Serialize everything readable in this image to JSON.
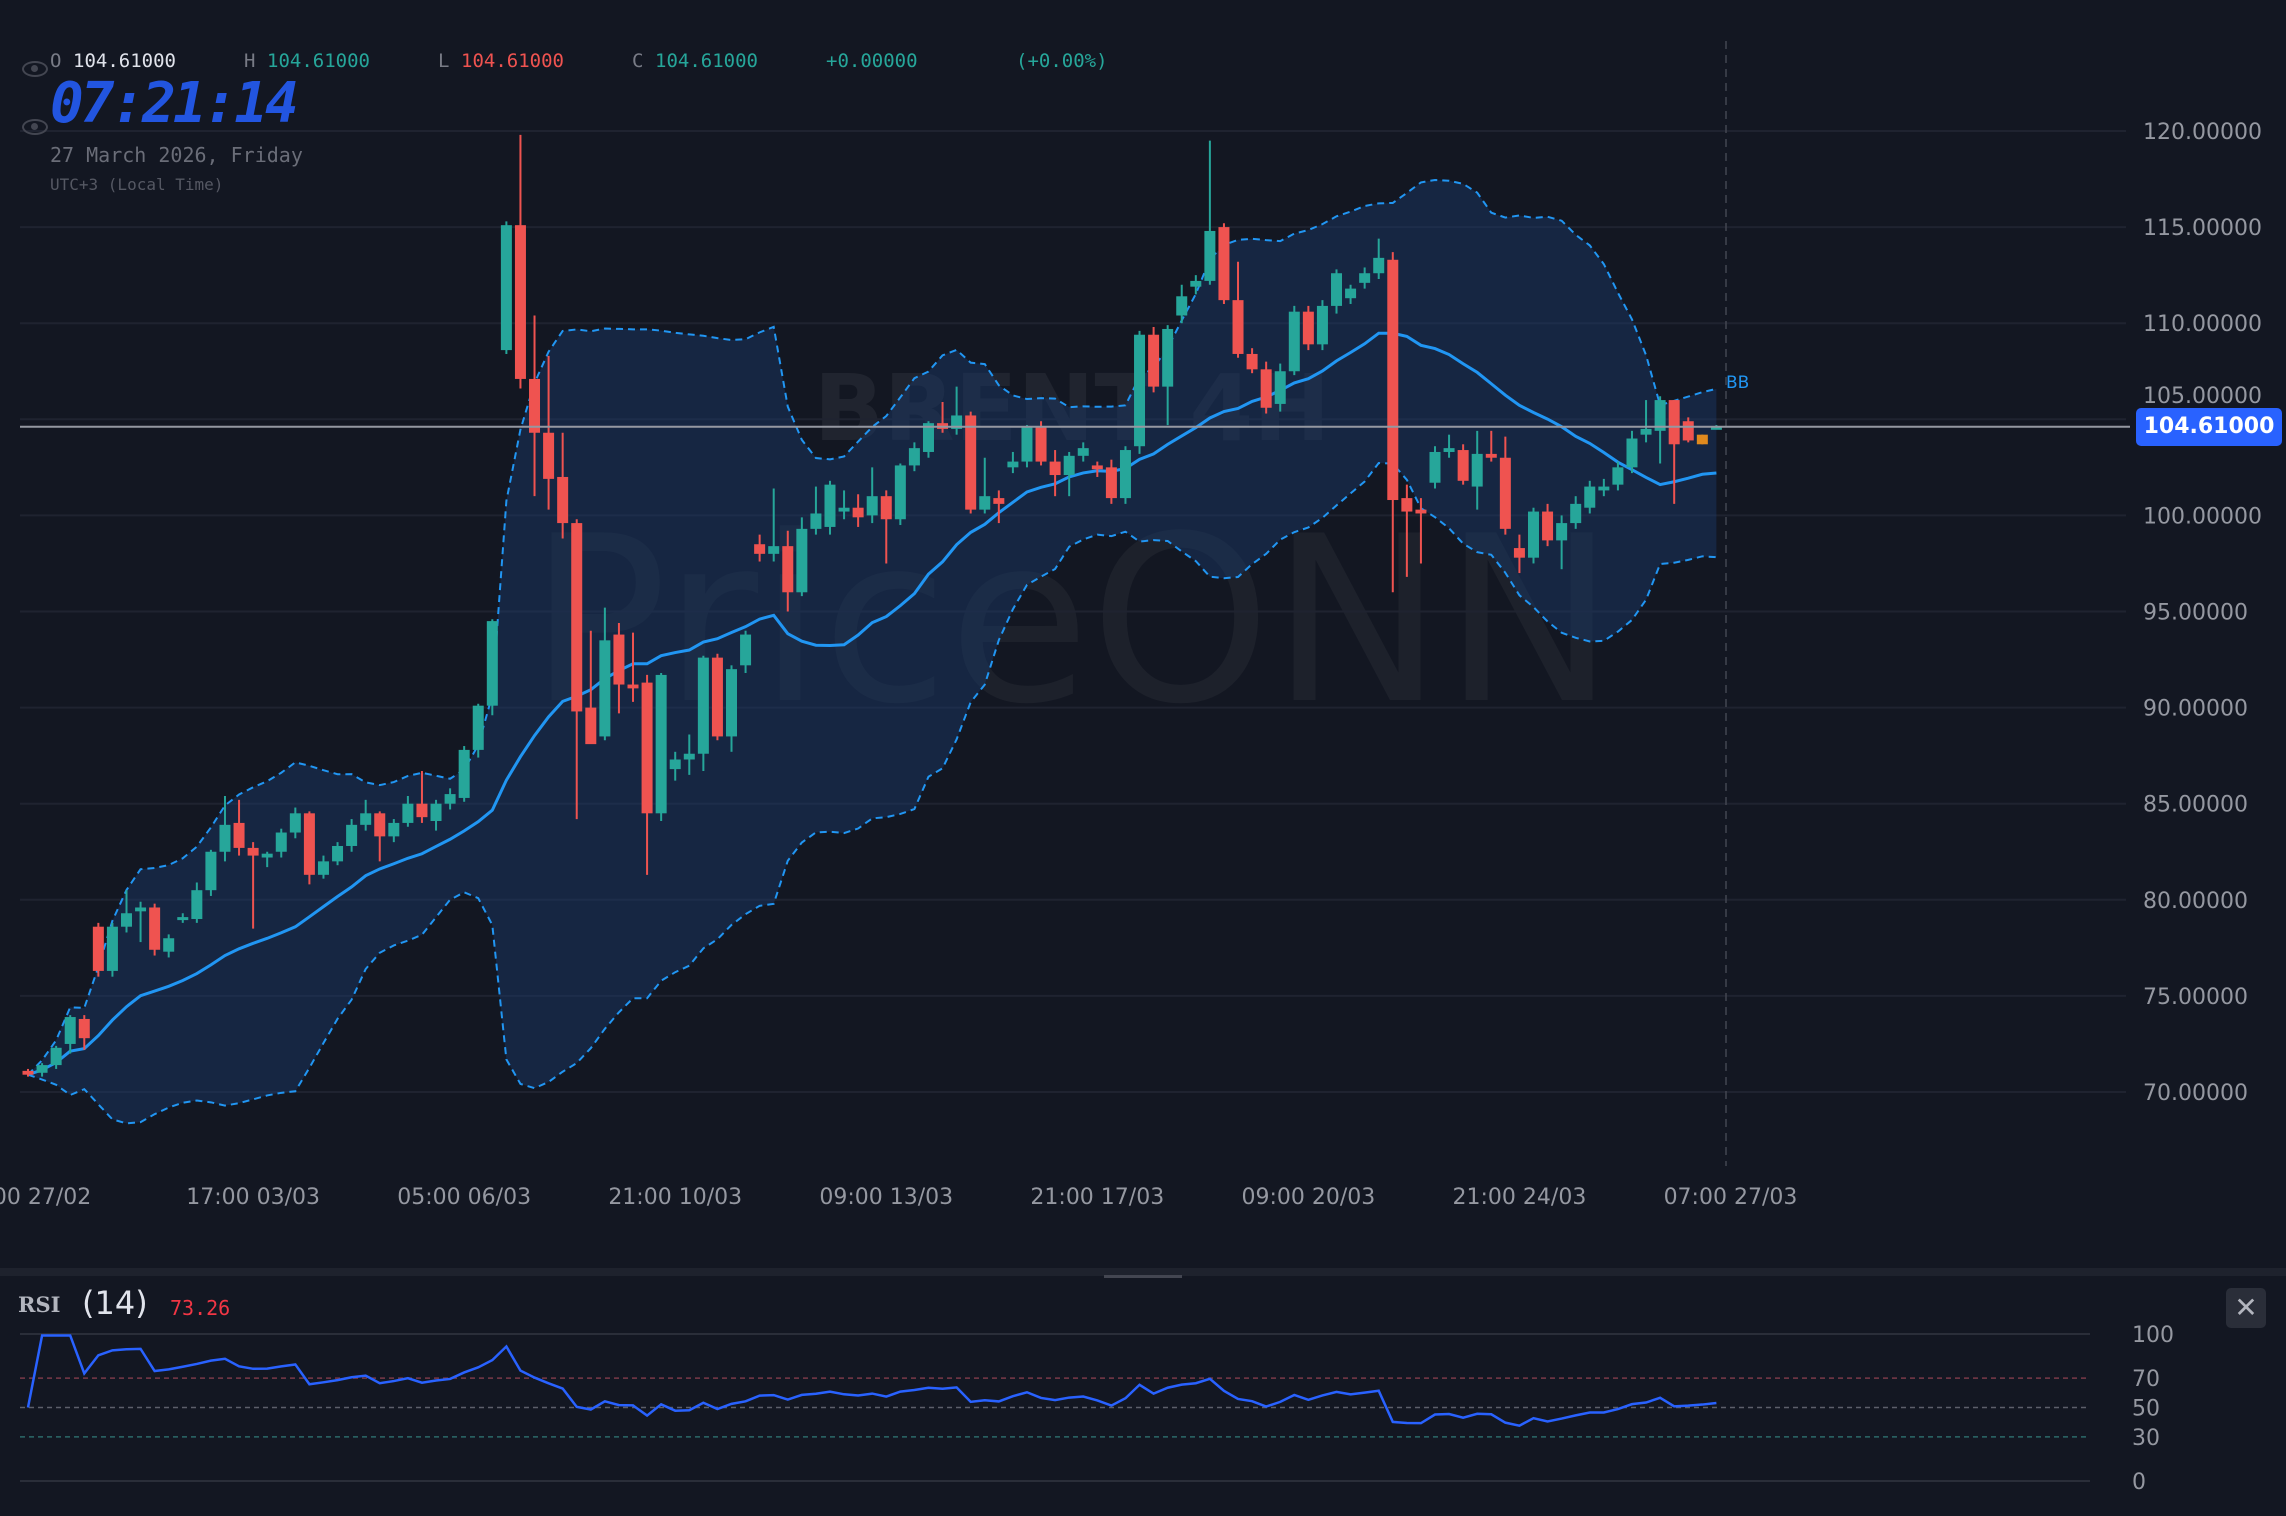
{
  "header": {
    "open_label": "O",
    "open": "104.61000",
    "high_label": "H",
    "high": "104.61000",
    "low_label": "L",
    "low": "104.61000",
    "close_label": "C",
    "close": "104.61000",
    "change": "+0.00000",
    "change_pct": "(+0.00%)",
    "clock": "07:21:14",
    "date": "27 March 2026, Friday",
    "timezone": "UTC+3 (Local Time)"
  },
  "watermark": {
    "symbol": "BRENT 4H",
    "brand": "PriceONN"
  },
  "indicator_label": "BB",
  "current_price": "104.61000",
  "colors": {
    "up": "#26a69a",
    "down": "#ef5350",
    "bb": "#2196f3",
    "rsi": "#2962ff",
    "accent": "#2962ff",
    "pending": "#e08a1e"
  },
  "rsi": {
    "name": "RSI",
    "period": "(14)",
    "value": "73.26",
    "levels": [
      70,
      50,
      30
    ],
    "ticks": [
      "100",
      "70",
      "50",
      "30",
      "0"
    ],
    "close_icon": "close-icon"
  },
  "chart_data": {
    "type": "candlestick",
    "symbol": "BRENT",
    "timeframe": "4H",
    "ylim": [
      66,
      121
    ],
    "y_ticks": [
      "120.00000",
      "115.00000",
      "110.00000",
      "105.00000",
      "100.00000",
      "95.00000",
      "90.00000",
      "85.00000",
      "80.00000",
      "75.00000",
      "70.00000"
    ],
    "x_ticks": [
      "00 27/02",
      "17:00 03/03",
      "05:00 06/03",
      "21:00 10/03",
      "09:00 13/03",
      "21:00 17/03",
      "09:00 20/03",
      "21:00 24/03",
      "07:00 27/03"
    ],
    "indicators": [
      "Bollinger Bands (20, 2)",
      "RSI (14)"
    ],
    "ohlc": [
      [
        71.1,
        71.2,
        70.8,
        70.9
      ],
      [
        71.0,
        71.5,
        70.8,
        71.4
      ],
      [
        71.4,
        72.4,
        71.2,
        72.3
      ],
      [
        72.5,
        74.0,
        72.0,
        73.9
      ],
      [
        73.8,
        74.0,
        72.2,
        72.8
      ],
      [
        78.6,
        78.8,
        76.0,
        76.3
      ],
      [
        76.3,
        78.8,
        76.0,
        78.6
      ],
      [
        78.6,
        80.5,
        78.3,
        79.3
      ],
      [
        79.4,
        79.9,
        77.8,
        79.6
      ],
      [
        79.6,
        79.8,
        77.1,
        77.4
      ],
      [
        77.3,
        78.2,
        77.0,
        78.0
      ],
      [
        79.0,
        79.3,
        78.8,
        79.1
      ],
      [
        79.0,
        80.9,
        78.8,
        80.5
      ],
      [
        80.5,
        82.6,
        80.2,
        82.5
      ],
      [
        82.5,
        85.4,
        82.0,
        83.9
      ],
      [
        84.0,
        85.2,
        82.3,
        82.7
      ],
      [
        82.7,
        83.0,
        78.5,
        82.3
      ],
      [
        82.2,
        82.5,
        81.7,
        82.4
      ],
      [
        82.5,
        83.7,
        82.2,
        83.5
      ],
      [
        83.5,
        84.8,
        83.2,
        84.5
      ],
      [
        84.5,
        84.6,
        80.8,
        81.3
      ],
      [
        81.3,
        82.3,
        81.1,
        82.0
      ],
      [
        82.0,
        83.0,
        81.8,
        82.8
      ],
      [
        82.8,
        84.2,
        82.5,
        83.9
      ],
      [
        83.9,
        85.2,
        83.6,
        84.5
      ],
      [
        84.5,
        84.6,
        82.0,
        83.3
      ],
      [
        83.3,
        84.2,
        83.0,
        84.0
      ],
      [
        84.0,
        85.4,
        83.8,
        85.0
      ],
      [
        85.0,
        86.7,
        84.0,
        84.3
      ],
      [
        84.1,
        85.2,
        83.6,
        85.0
      ],
      [
        85.0,
        85.8,
        84.7,
        85.5
      ],
      [
        85.3,
        88.0,
        85.1,
        87.8
      ],
      [
        87.8,
        90.2,
        87.4,
        90.1
      ],
      [
        90.1,
        94.6,
        89.6,
        94.5
      ],
      [
        108.6,
        115.3,
        108.4,
        115.1
      ],
      [
        115.1,
        119.8,
        106.6,
        107.1
      ],
      [
        107.1,
        110.4,
        101.0,
        104.3
      ],
      [
        104.3,
        108.3,
        100.3,
        101.9
      ],
      [
        102.0,
        104.3,
        98.8,
        99.6
      ],
      [
        99.6,
        99.8,
        84.2,
        89.8
      ],
      [
        90.0,
        94.0,
        88.6,
        88.1
      ],
      [
        88.5,
        95.2,
        88.3,
        93.5
      ],
      [
        93.8,
        94.4,
        89.7,
        91.2
      ],
      [
        91.2,
        93.9,
        90.3,
        91.0
      ],
      [
        91.3,
        91.7,
        81.3,
        84.5
      ],
      [
        84.5,
        91.8,
        84.1,
        91.7
      ],
      [
        86.8,
        87.7,
        86.2,
        87.3
      ],
      [
        87.3,
        88.6,
        86.5,
        87.6
      ],
      [
        87.6,
        92.7,
        86.7,
        92.6
      ],
      [
        92.6,
        92.8,
        88.3,
        88.5
      ],
      [
        88.5,
        92.2,
        87.7,
        92.0
      ],
      [
        92.2,
        94.0,
        91.8,
        93.8
      ],
      [
        98.5,
        99.0,
        97.6,
        98.0
      ],
      [
        98.0,
        101.4,
        97.6,
        98.4
      ],
      [
        98.4,
        99.2,
        95.0,
        96.0
      ],
      [
        96.0,
        99.9,
        95.8,
        99.3
      ],
      [
        99.3,
        101.5,
        99.0,
        100.1
      ],
      [
        99.4,
        101.8,
        99.0,
        101.6
      ],
      [
        100.2,
        101.3,
        99.8,
        100.4
      ],
      [
        100.4,
        101.1,
        99.4,
        99.9
      ],
      [
        100.0,
        102.5,
        99.6,
        101.0
      ],
      [
        101.0,
        101.3,
        97.5,
        99.8
      ],
      [
        99.8,
        102.7,
        99.5,
        102.6
      ],
      [
        102.6,
        103.8,
        102.3,
        103.5
      ],
      [
        103.3,
        104.9,
        103.0,
        104.8
      ],
      [
        104.8,
        105.9,
        104.3,
        104.5
      ],
      [
        104.5,
        106.7,
        104.2,
        105.2
      ],
      [
        105.2,
        105.4,
        100.1,
        100.3
      ],
      [
        100.3,
        103.0,
        100.1,
        101.0
      ],
      [
        100.9,
        101.3,
        99.6,
        100.6
      ],
      [
        102.5,
        103.3,
        102.2,
        102.8
      ],
      [
        102.8,
        104.7,
        102.5,
        104.6
      ],
      [
        104.6,
        104.9,
        102.6,
        102.8
      ],
      [
        102.8,
        103.4,
        101.0,
        102.1
      ],
      [
        102.1,
        103.3,
        101.0,
        103.1
      ],
      [
        103.1,
        103.8,
        102.8,
        103.5
      ],
      [
        102.6,
        102.8,
        102.0,
        102.4
      ],
      [
        102.5,
        102.9,
        100.6,
        100.9
      ],
      [
        100.9,
        103.6,
        100.6,
        103.4
      ],
      [
        103.6,
        109.6,
        103.2,
        109.4
      ],
      [
        109.4,
        109.8,
        106.4,
        106.7
      ],
      [
        106.7,
        109.9,
        104.7,
        109.7
      ],
      [
        110.4,
        112.0,
        110.0,
        111.4
      ],
      [
        111.9,
        112.5,
        111.5,
        112.2
      ],
      [
        112.2,
        119.5,
        112.0,
        114.8
      ],
      [
        115.0,
        115.2,
        111.0,
        111.2
      ],
      [
        111.2,
        113.2,
        108.2,
        108.4
      ],
      [
        108.4,
        108.7,
        107.4,
        107.6
      ],
      [
        107.6,
        108.0,
        105.3,
        105.6
      ],
      [
        105.8,
        107.9,
        105.4,
        107.5
      ],
      [
        107.5,
        110.9,
        107.3,
        110.6
      ],
      [
        110.6,
        110.9,
        108.6,
        108.9
      ],
      [
        108.9,
        111.2,
        108.6,
        110.9
      ],
      [
        110.9,
        112.8,
        110.5,
        112.6
      ],
      [
        111.3,
        112.0,
        111.0,
        111.8
      ],
      [
        112.1,
        112.9,
        111.8,
        112.6
      ],
      [
        112.6,
        114.4,
        112.3,
        113.4
      ],
      [
        113.3,
        113.7,
        96.0,
        100.8
      ],
      [
        100.9,
        101.6,
        96.8,
        100.2
      ],
      [
        100.3,
        100.9,
        97.5,
        100.1
      ],
      [
        101.7,
        103.6,
        101.4,
        103.3
      ],
      [
        103.3,
        104.2,
        103.0,
        103.5
      ],
      [
        103.4,
        103.7,
        101.6,
        101.8
      ],
      [
        101.5,
        104.4,
        100.3,
        103.2
      ],
      [
        103.2,
        104.4,
        102.8,
        103.0
      ],
      [
        103.0,
        104.1,
        99.0,
        99.3
      ],
      [
        98.3,
        99.0,
        97.0,
        97.8
      ],
      [
        97.8,
        100.4,
        97.5,
        100.2
      ],
      [
        100.2,
        100.6,
        98.4,
        98.7
      ],
      [
        98.7,
        100.0,
        97.2,
        99.6
      ],
      [
        99.6,
        101.0,
        99.3,
        100.6
      ],
      [
        100.4,
        101.8,
        100.1,
        101.5
      ],
      [
        101.3,
        101.9,
        101.0,
        101.5
      ],
      [
        101.6,
        102.8,
        101.3,
        102.5
      ],
      [
        102.5,
        104.4,
        102.2,
        104.0
      ],
      [
        104.2,
        106.0,
        103.8,
        104.5
      ],
      [
        104.4,
        106.2,
        102.7,
        106.0
      ],
      [
        106.0,
        106.0,
        100.6,
        103.7
      ],
      [
        104.9,
        105.1,
        103.8,
        103.9
      ],
      [
        103.7,
        104.2,
        103.7,
        104.2
      ],
      [
        104.5,
        104.7,
        104.5,
        104.61
      ]
    ]
  }
}
